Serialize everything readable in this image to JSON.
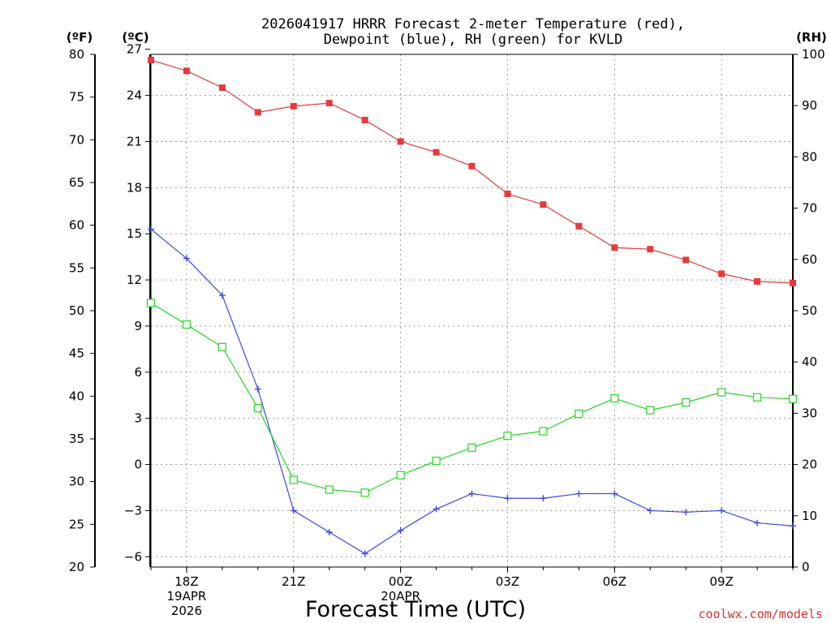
{
  "title": {
    "line1": "2026041917 HRRR Forecast 2-meter Temperature (red),",
    "line2": "Dewpoint (blue), RH (green) for KVLD"
  },
  "credit": "coolwx.com/models",
  "chart_data": {
    "type": "line",
    "title": "2026041917 HRRR Forecast 2-meter Temperature (red), Dewpoint (blue), RH (green) for KVLD",
    "xlabel": "Forecast Time (UTC)",
    "x": [
      17,
      18,
      19,
      20,
      21,
      22,
      23,
      24,
      25,
      26,
      27,
      28,
      29,
      30,
      31,
      32,
      33,
      34,
      35
    ],
    "xlim": [
      17,
      35
    ],
    "x_ticks": [
      {
        "x": 18,
        "label": "18Z",
        "sub1": "19APR",
        "sub2": "2026"
      },
      {
        "x": 21,
        "label": "21Z",
        "sub1": "",
        "sub2": ""
      },
      {
        "x": 24,
        "label": "00Z",
        "sub1": "20APR",
        "sub2": ""
      },
      {
        "x": 27,
        "label": "03Z",
        "sub1": "",
        "sub2": ""
      },
      {
        "x": 30,
        "label": "06Z",
        "sub1": "",
        "sub2": ""
      },
      {
        "x": 33,
        "label": "09Z",
        "sub1": "",
        "sub2": ""
      }
    ],
    "axes": {
      "fahrenheit": {
        "unit": "(ºF)",
        "ylim": [
          20,
          80
        ],
        "ticks": [
          20,
          25,
          30,
          35,
          40,
          45,
          50,
          55,
          60,
          65,
          70,
          75,
          80
        ]
      },
      "celsius": {
        "unit": "(ºC)",
        "ylim": [
          -6.67,
          26.67
        ],
        "ticks": [
          -6,
          -3,
          0,
          3,
          6,
          9,
          12,
          15,
          18,
          21,
          24,
          27
        ]
      },
      "rh": {
        "unit": "(RH)",
        "ylim": [
          0,
          100
        ],
        "ticks": [
          0,
          10,
          20,
          30,
          40,
          50,
          60,
          70,
          80,
          90,
          100
        ]
      }
    },
    "series": [
      {
        "name": "2-meter Temperature",
        "axis": "celsius",
        "color": "#e83a3a",
        "marker": "filled-square",
        "values": [
          26.3,
          25.6,
          24.5,
          22.9,
          23.3,
          23.5,
          22.4,
          21.0,
          20.3,
          19.4,
          17.6,
          16.9,
          15.5,
          14.1,
          14.0,
          13.3,
          12.4,
          11.9,
          11.8
        ]
      },
      {
        "name": "Dewpoint",
        "axis": "celsius",
        "color": "#3a48e8",
        "marker": "plus",
        "values": [
          15.3,
          13.4,
          11.0,
          4.9,
          -3.0,
          -4.4,
          -5.8,
          -4.3,
          -2.9,
          -1.9,
          -2.2,
          -2.2,
          -1.9,
          -1.9,
          -3.0,
          -3.1,
          -3.0,
          -3.8,
          -4.0
        ]
      },
      {
        "name": "RH",
        "axis": "rh",
        "color": "#22d822",
        "marker": "open-square",
        "values": [
          51.5,
          47.3,
          42.9,
          31.0,
          17.0,
          15.1,
          14.5,
          17.9,
          20.7,
          23.3,
          25.6,
          26.5,
          29.9,
          32.9,
          30.6,
          32.1,
          34.1,
          33.1,
          32.8
        ]
      }
    ]
  }
}
